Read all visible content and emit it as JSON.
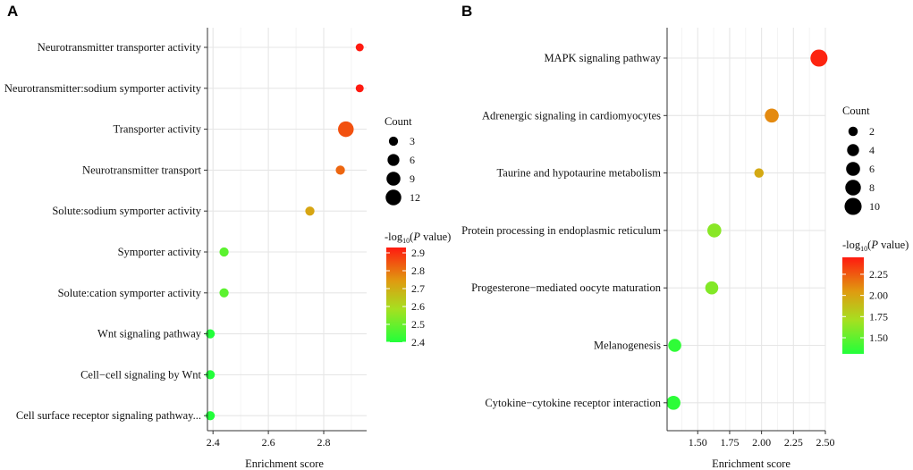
{
  "chart_data": [
    {
      "type": "scatter",
      "panel": "A",
      "xlabel": "Enrichment score",
      "xlim": [
        2.38,
        2.955
      ],
      "xticks": [
        2.4,
        2.6,
        2.8
      ],
      "xtick_labels": [
        "2.4",
        "2.6",
        "2.8"
      ],
      "categories": [
        "Neurotransmitter transporter activity",
        "Neurotransmitter:sodium symporter activity",
        "Transporter activity",
        "Neurotransmitter transport",
        "Solute:sodium symporter activity",
        "Symporter activity",
        "Solute:cation symporter activity",
        "Wnt signaling pathway",
        "Cell−cell signaling by Wnt",
        "Cell surface receptor signaling pathway..."
      ],
      "x": [
        2.93,
        2.93,
        2.88,
        2.86,
        2.75,
        2.44,
        2.44,
        2.39,
        2.39,
        2.39
      ],
      "count": [
        2,
        2,
        12,
        3,
        3,
        3,
        3,
        3,
        3,
        3
      ],
      "neglog10p": [
        2.95,
        2.95,
        2.85,
        2.82,
        2.72,
        2.48,
        2.48,
        2.4,
        2.4,
        2.4
      ],
      "size_legend": {
        "title": "Count",
        "values": [
          3,
          6,
          9,
          12
        ],
        "labels": [
          "3",
          "6",
          "9",
          "12"
        ]
      },
      "color_legend": {
        "title_prefix": "-log",
        "title_sub": "10",
        "title_open": "(",
        "title_italic": "P",
        "title_rest": " value)",
        "min": 2.4,
        "max": 2.93,
        "ticks": [
          2.4,
          2.5,
          2.6,
          2.7,
          2.8,
          2.9
        ],
        "tick_labels": [
          "2.4",
          "2.5",
          "2.6",
          "2.7",
          "2.8",
          "2.9"
        ]
      }
    },
    {
      "type": "scatter",
      "panel": "B",
      "xlabel": "Enrichment score",
      "xlim": [
        1.26,
        2.5
      ],
      "xticks": [
        1.5,
        1.75,
        2.0,
        2.25,
        2.5
      ],
      "xtick_labels": [
        "1.50",
        "1.75",
        "2.00",
        "2.25",
        "2.50"
      ],
      "categories": [
        "MAPK signaling pathway",
        "Adrenergic signaling in cardiomyocytes",
        "Taurine and hypotaurine metabolism",
        "Protein processing in endoplasmic reticulum",
        "Progesterone−mediated oocyte maturation",
        "Melanogenesis",
        "Cytokine−cytokine receptor interaction"
      ],
      "x": [
        2.45,
        2.08,
        1.98,
        1.63,
        1.61,
        1.32,
        1.31
      ],
      "count": [
        10,
        6,
        2,
        6,
        5,
        5,
        6
      ],
      "neglog10p": [
        2.42,
        2.1,
        1.98,
        1.62,
        1.6,
        1.35,
        1.34
      ],
      "size_legend": {
        "title": "Count",
        "values": [
          2,
          4,
          6,
          8,
          10
        ],
        "labels": [
          "2",
          "4",
          "6",
          "8",
          "10"
        ]
      },
      "color_legend": {
        "title_prefix": "-log",
        "title_sub": "10",
        "title_open": "(",
        "title_italic": "P",
        "title_rest": " value)",
        "min": 1.31,
        "max": 2.45,
        "ticks": [
          1.5,
          1.75,
          2.0,
          2.25
        ],
        "tick_labels": [
          "1.50",
          "1.75",
          "2.00",
          "2.25"
        ]
      }
    }
  ]
}
